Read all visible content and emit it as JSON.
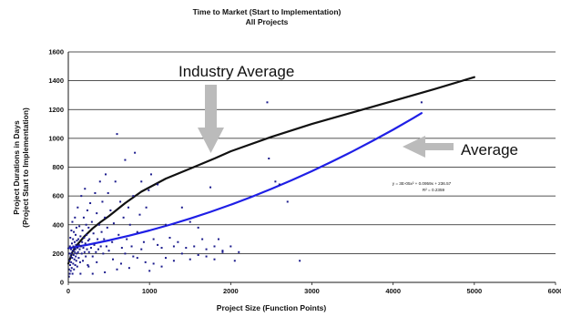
{
  "chart_data": {
    "type": "scatter",
    "title": "Time to Market (Start to Implementation)",
    "subtitle": "All Projects",
    "xlabel": "Project Size (Function Points)",
    "ylabel_line1": "Project Durations in Days",
    "ylabel_line2": "(Project Start to Implementation)",
    "xlim": [
      0,
      6000
    ],
    "ylim": [
      0,
      1600
    ],
    "x_ticks": [
      "0",
      "1000",
      "2000",
      "3000",
      "4000",
      "5000",
      "6000"
    ],
    "y_ticks": [
      "0",
      "200",
      "400",
      "600",
      "800",
      "1000",
      "1200",
      "1400",
      "1600"
    ],
    "grid": "horizontal",
    "annotations": {
      "industry_average": "Industry Average",
      "average": "Average",
      "equation": "y = 3E-05x² + 0.0959x + 236.57",
      "r_squared": "R² = 0.2359"
    },
    "series": [
      {
        "kind": "line",
        "color": "#111111",
        "points": [
          [
            0,
            130
          ],
          [
            50,
            210
          ],
          [
            100,
            255
          ],
          [
            200,
            320
          ],
          [
            300,
            375
          ],
          [
            400,
            420
          ],
          [
            500,
            460
          ],
          [
            700,
            550
          ],
          [
            900,
            630
          ],
          [
            1000,
            660
          ],
          [
            1200,
            720
          ],
          [
            1500,
            790
          ],
          [
            1800,
            860
          ],
          [
            2000,
            910
          ],
          [
            2500,
            1010
          ],
          [
            3000,
            1100
          ],
          [
            3500,
            1180
          ],
          [
            4000,
            1260
          ],
          [
            4500,
            1340
          ],
          [
            5000,
            1425
          ]
        ]
      },
      {
        "kind": "line",
        "color": "#1f1fe6",
        "points": [
          [
            0,
            236.57
          ],
          [
            250,
            262.4
          ],
          [
            500,
            291.7
          ],
          [
            750,
            324.4
          ],
          [
            1000,
            360.5
          ],
          [
            1250,
            400.0
          ],
          [
            1500,
            442.9
          ],
          [
            1750,
            489.3
          ],
          [
            2000,
            539.0
          ],
          [
            2250,
            592.2
          ],
          [
            2500,
            648.8
          ],
          [
            2750,
            708.8
          ],
          [
            3000,
            772.3
          ],
          [
            3250,
            839.2
          ],
          [
            3500,
            909.5
          ],
          [
            3750,
            983.3
          ],
          [
            4000,
            1060.2
          ],
          [
            4250,
            1141.2
          ],
          [
            4350,
            1175.0
          ]
        ]
      },
      {
        "kind": "points",
        "color": "#1a1a8c",
        "points": [
          [
            8,
            40
          ],
          [
            10,
            90
          ],
          [
            12,
            150
          ],
          [
            15,
            200
          ],
          [
            18,
            60
          ],
          [
            20,
            250
          ],
          [
            22,
            120
          ],
          [
            25,
            310
          ],
          [
            28,
            180
          ],
          [
            30,
            80
          ],
          [
            33,
            230
          ],
          [
            35,
            140
          ],
          [
            38,
            360
          ],
          [
            40,
            200
          ],
          [
            42,
            100
          ],
          [
            45,
            270
          ],
          [
            48,
            170
          ],
          [
            50,
            420
          ],
          [
            52,
            60
          ],
          [
            55,
            220
          ],
          [
            58,
            300
          ],
          [
            60,
            130
          ],
          [
            62,
            250
          ],
          [
            65,
            190
          ],
          [
            68,
            350
          ],
          [
            70,
            90
          ],
          [
            72,
            240
          ],
          [
            75,
            160
          ],
          [
            78,
            280
          ],
          [
            80,
            210
          ],
          [
            82,
            450
          ],
          [
            85,
            120
          ],
          [
            88,
            230
          ],
          [
            90,
            330
          ],
          [
            92,
            180
          ],
          [
            95,
            260
          ],
          [
            98,
            150
          ],
          [
            100,
            380
          ],
          [
            103,
            200
          ],
          [
            106,
            290
          ],
          [
            110,
            110
          ],
          [
            113,
            240
          ],
          [
            116,
            520
          ],
          [
            120,
            210
          ],
          [
            124,
            300
          ],
          [
            128,
            170
          ],
          [
            132,
            260
          ],
          [
            136,
            390
          ],
          [
            140,
            230
          ],
          [
            145,
            140
          ],
          [
            150,
            320
          ],
          [
            155,
            250
          ],
          [
            160,
            600
          ],
          [
            165,
            200
          ],
          [
            170,
            280
          ],
          [
            175,
            360
          ],
          [
            180,
            150
          ],
          [
            185,
            240
          ],
          [
            190,
            450
          ],
          [
            195,
            310
          ],
          [
            200,
            210
          ],
          [
            205,
            650
          ],
          [
            210,
            270
          ],
          [
            215,
            180
          ],
          [
            220,
            400
          ],
          [
            225,
            330
          ],
          [
            230,
            230
          ],
          [
            235,
            500
          ],
          [
            240,
            120
          ],
          [
            245,
            290
          ],
          [
            250,
            380
          ],
          [
            255,
            210
          ],
          [
            260,
            300
          ],
          [
            270,
            550
          ],
          [
            280,
            240
          ],
          [
            290,
            420
          ],
          [
            300,
            180
          ],
          [
            310,
            340
          ],
          [
            320,
            260
          ],
          [
            330,
            620
          ],
          [
            340,
            210
          ],
          [
            350,
            480
          ],
          [
            360,
            300
          ],
          [
            370,
            230
          ],
          [
            380,
            400
          ],
          [
            390,
            700
          ],
          [
            400,
            250
          ],
          [
            410,
            350
          ],
          [
            420,
            560
          ],
          [
            430,
            200
          ],
          [
            440,
            300
          ],
          [
            450,
            450
          ],
          [
            460,
            750
          ],
          [
            470,
            250
          ],
          [
            480,
            380
          ],
          [
            490,
            620
          ],
          [
            500,
            220
          ],
          [
            520,
            500
          ],
          [
            540,
            280
          ],
          [
            560,
            410
          ],
          [
            580,
            700
          ],
          [
            600,
            1030
          ],
          [
            620,
            330
          ],
          [
            640,
            560
          ],
          [
            660,
            240
          ],
          [
            680,
            450
          ],
          [
            700,
            850
          ],
          [
            720,
            300
          ],
          [
            740,
            520
          ],
          [
            760,
            400
          ],
          [
            780,
            250
          ],
          [
            800,
            600
          ],
          [
            820,
            900
          ],
          [
            850,
            350
          ],
          [
            880,
            470
          ],
          [
            900,
            700
          ],
          [
            930,
            280
          ],
          [
            960,
            520
          ],
          [
            990,
            640
          ],
          [
            1000,
            80
          ],
          [
            1020,
            750
          ],
          [
            1050,
            300
          ],
          [
            1100,
            680
          ],
          [
            1150,
            240
          ],
          [
            1200,
            400
          ],
          [
            1250,
            310
          ],
          [
            1300,
            250
          ],
          [
            1350,
            280
          ],
          [
            1400,
            520
          ],
          [
            1450,
            240
          ],
          [
            1500,
            420
          ],
          [
            1550,
            250
          ],
          [
            1600,
            380
          ],
          [
            1650,
            300
          ],
          [
            1700,
            230
          ],
          [
            1750,
            660
          ],
          [
            1800,
            250
          ],
          [
            1850,
            300
          ],
          [
            1900,
            220
          ],
          [
            2000,
            250
          ],
          [
            2100,
            210
          ],
          [
            2450,
            1250
          ],
          [
            2470,
            860
          ],
          [
            2550,
            700
          ],
          [
            2600,
            680
          ],
          [
            2700,
            560
          ],
          [
            2850,
            150
          ],
          [
            4350,
            1250
          ],
          [
            1050,
            130
          ],
          [
            1200,
            170
          ],
          [
            1400,
            200
          ],
          [
            1600,
            190
          ],
          [
            1800,
            160
          ],
          [
            2050,
            150
          ],
          [
            300,
            60
          ],
          [
            450,
            70
          ],
          [
            600,
            90
          ],
          [
            750,
            100
          ],
          [
            150,
            60
          ],
          [
            250,
            110
          ],
          [
            350,
            140
          ],
          [
            550,
            160
          ],
          [
            650,
            130
          ],
          [
            850,
            170
          ],
          [
            950,
            140
          ],
          [
            1150,
            110
          ],
          [
            700,
            200
          ],
          [
            800,
            180
          ],
          [
            900,
            230
          ],
          [
            1100,
            260
          ],
          [
            1300,
            150
          ],
          [
            1500,
            160
          ],
          [
            1700,
            180
          ],
          [
            1900,
            210
          ]
        ]
      }
    ]
  }
}
